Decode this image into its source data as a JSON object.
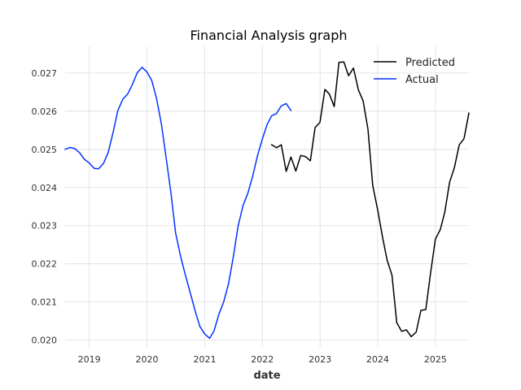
{
  "chart_data": {
    "type": "line",
    "title": "Financial Analysis graph",
    "xlabel": "date",
    "ylabel": "",
    "x_axis_kind": "date",
    "xlim": [
      "2018-08-01",
      "2025-08-01"
    ],
    "ylim": [
      0.0198,
      0.0277
    ],
    "x_ticks": [
      "2019",
      "2020",
      "2021",
      "2022",
      "2023",
      "2024",
      "2025"
    ],
    "y_ticks": [
      "0.020",
      "0.021",
      "0.022",
      "0.023",
      "0.024",
      "0.025",
      "0.026",
      "0.027"
    ],
    "y_tick_values": [
      0.02,
      0.021,
      0.022,
      0.023,
      0.024,
      0.025,
      0.026,
      0.027
    ],
    "grid": true,
    "legend_position": "top-right",
    "series": [
      {
        "name": "Predicted",
        "color": "#000000",
        "points": [
          [
            "2022-03-01",
            0.02512
          ],
          [
            "2022-04-01",
            0.02504
          ],
          [
            "2022-05-01",
            0.02512
          ],
          [
            "2022-06-01",
            0.02442
          ],
          [
            "2022-07-01",
            0.0248
          ],
          [
            "2022-08-01",
            0.02443
          ],
          [
            "2022-09-01",
            0.02484
          ],
          [
            "2022-10-01",
            0.02481
          ],
          [
            "2022-11-01",
            0.0247
          ],
          [
            "2022-12-01",
            0.02557
          ],
          [
            "2023-01-01",
            0.02571
          ],
          [
            "2023-02-01",
            0.02657
          ],
          [
            "2023-03-01",
            0.02645
          ],
          [
            "2023-04-01",
            0.02612
          ],
          [
            "2023-05-01",
            0.02728
          ],
          [
            "2023-06-01",
            0.02729
          ],
          [
            "2023-07-01",
            0.02693
          ],
          [
            "2023-08-01",
            0.02713
          ],
          [
            "2023-09-01",
            0.02656
          ],
          [
            "2023-10-01",
            0.02627
          ],
          [
            "2023-11-01",
            0.02552
          ],
          [
            "2023-12-01",
            0.02405
          ],
          [
            "2024-01-01",
            0.02342
          ],
          [
            "2024-02-01",
            0.0227
          ],
          [
            "2024-03-01",
            0.0221
          ],
          [
            "2024-04-01",
            0.0217
          ],
          [
            "2024-05-01",
            0.02046
          ],
          [
            "2024-06-01",
            0.02023
          ],
          [
            "2024-07-01",
            0.02027
          ],
          [
            "2024-08-01",
            0.02009
          ],
          [
            "2024-09-01",
            0.02021
          ],
          [
            "2024-10-01",
            0.02078
          ],
          [
            "2024-11-01",
            0.0208
          ],
          [
            "2024-12-01",
            0.02175
          ],
          [
            "2025-01-01",
            0.02265
          ],
          [
            "2025-02-01",
            0.0229
          ],
          [
            "2025-03-01",
            0.02335
          ],
          [
            "2025-04-01",
            0.02414
          ],
          [
            "2025-05-01",
            0.02452
          ],
          [
            "2025-06-01",
            0.02512
          ],
          [
            "2025-07-01",
            0.02528
          ],
          [
            "2025-08-01",
            0.02595
          ]
        ]
      },
      {
        "name": "Actual",
        "color": "#0433ff",
        "points": [
          [
            "2018-08-01",
            0.025
          ],
          [
            "2018-09-01",
            0.02505
          ],
          [
            "2018-10-01",
            0.02502
          ],
          [
            "2018-11-01",
            0.02491
          ],
          [
            "2018-12-01",
            0.02474
          ],
          [
            "2019-01-01",
            0.02464
          ],
          [
            "2019-02-01",
            0.0245
          ],
          [
            "2019-03-01",
            0.02449
          ],
          [
            "2019-04-01",
            0.02463
          ],
          [
            "2019-05-01",
            0.02492
          ],
          [
            "2019-06-01",
            0.02545
          ],
          [
            "2019-07-01",
            0.02602
          ],
          [
            "2019-08-01",
            0.02631
          ],
          [
            "2019-09-01",
            0.02645
          ],
          [
            "2019-10-01",
            0.0267
          ],
          [
            "2019-11-01",
            0.02701
          ],
          [
            "2019-12-01",
            0.02715
          ],
          [
            "2020-01-01",
            0.02703
          ],
          [
            "2020-02-01",
            0.0268
          ],
          [
            "2020-03-01",
            0.02635
          ],
          [
            "2020-04-01",
            0.02568
          ],
          [
            "2020-05-01",
            0.0248
          ],
          [
            "2020-06-01",
            0.02386
          ],
          [
            "2020-07-01",
            0.0228
          ],
          [
            "2020-08-01",
            0.0222
          ],
          [
            "2020-09-01",
            0.0217
          ],
          [
            "2020-10-01",
            0.02125
          ],
          [
            "2020-11-01",
            0.02077
          ],
          [
            "2020-12-01",
            0.02036
          ],
          [
            "2021-01-01",
            0.02016
          ],
          [
            "2021-02-01",
            0.02005
          ],
          [
            "2021-03-01",
            0.02024
          ],
          [
            "2021-04-01",
            0.02068
          ],
          [
            "2021-05-01",
            0.021
          ],
          [
            "2021-06-01",
            0.02148
          ],
          [
            "2021-07-01",
            0.02218
          ],
          [
            "2021-08-01",
            0.023
          ],
          [
            "2021-09-01",
            0.02353
          ],
          [
            "2021-10-01",
            0.02385
          ],
          [
            "2021-11-01",
            0.0243
          ],
          [
            "2021-12-01",
            0.02483
          ],
          [
            "2022-01-01",
            0.02527
          ],
          [
            "2022-02-01",
            0.02566
          ],
          [
            "2022-03-01",
            0.02588
          ],
          [
            "2022-04-01",
            0.02594
          ],
          [
            "2022-05-01",
            0.02614
          ],
          [
            "2022-06-01",
            0.0262
          ],
          [
            "2022-07-01",
            0.02602
          ]
        ]
      }
    ]
  }
}
